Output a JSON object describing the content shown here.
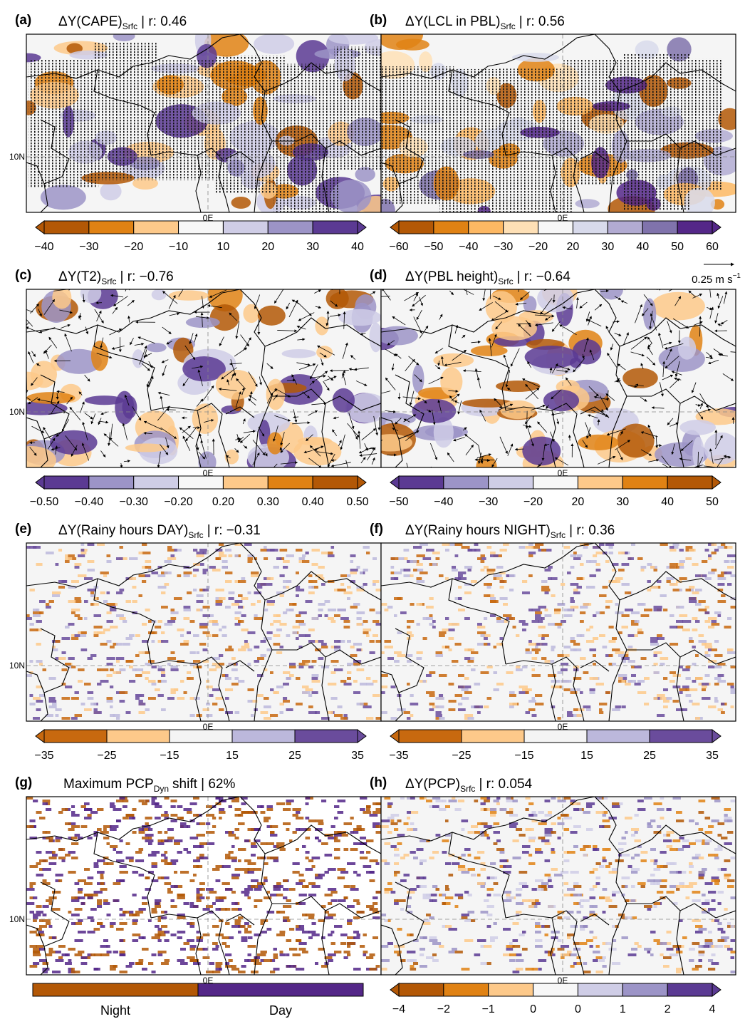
{
  "panels": [
    {
      "letter": "(a)",
      "title": "ΔY(CAPE)",
      "sub": "Srfc",
      "suffix": "| r: 0.46",
      "lat_label": "10N",
      "lon_label": "0E",
      "hatched": true,
      "style": "blobs",
      "colorbar": {
        "colors": [
          "#b35806",
          "#e08214",
          "#fdc98a",
          "#f7f7f7",
          "#cfcde6",
          "#9c94c7",
          "#5b3a93"
        ],
        "ticks": [
          "−40",
          "−30",
          "−20",
          "−10",
          "10",
          "20",
          "30",
          "40"
        ]
      }
    },
    {
      "letter": "(b)",
      "title": "ΔY(LCL in PBL)",
      "sub": "Srfc",
      "suffix": "| r: 0.56",
      "lon_label": "0E",
      "hatched": true,
      "style": "blobs",
      "colorbar": {
        "colors": [
          "#b35806",
          "#e08214",
          "#fdb863",
          "#fee0b6",
          "#f7f7f7",
          "#d8daeb",
          "#b2abd2",
          "#8073ac",
          "#542788"
        ],
        "ticks": [
          "−60",
          "−50",
          "−40",
          "−30",
          "−20",
          "20",
          "30",
          "40",
          "50",
          "60"
        ]
      }
    },
    {
      "letter": "(c)",
      "title": "ΔY(T2)",
      "sub": "Srfc",
      "suffix": "| r: −0.76",
      "lat_label": "10N",
      "lon_label": "0E",
      "vectors": true,
      "style": "blobs",
      "colorbar": {
        "colors": [
          "#5b3a93",
          "#9c94c7",
          "#cfcde6",
          "#f7f7f7",
          "#fdc98a",
          "#e08214",
          "#b35806"
        ],
        "ticks": [
          "−0.50",
          "−0.40",
          "−0.30",
          "−0.20",
          "0.20",
          "0.30",
          "0.40",
          "0.50"
        ]
      }
    },
    {
      "letter": "(d)",
      "title": "ΔY(PBL height)",
      "sub": "Srfc",
      "suffix": "| r: −0.64",
      "lon_label": "0E",
      "vectors": true,
      "style": "blobs",
      "vector_key": {
        "text": "0.25 m s",
        "sup": "−1"
      },
      "colorbar": {
        "colors": [
          "#5b3a93",
          "#9c94c7",
          "#cfcde6",
          "#f7f7f7",
          "#fdc98a",
          "#e08214",
          "#b35806"
        ],
        "ticks": [
          "−50",
          "−40",
          "−30",
          "−20",
          "20",
          "30",
          "40",
          "50"
        ]
      }
    },
    {
      "letter": "(e)",
      "title": "ΔY(Rainy hours DAY)",
      "sub": "Srfc",
      "suffix": "| r: −0.31",
      "lat_label": "10N",
      "lon_label": "0E",
      "style": "speckle",
      "colorbar": {
        "colors": [
          "#c8690f",
          "#fdc98a",
          "#f4f4f4",
          "#bcb8dc",
          "#6a4c9c"
        ],
        "ticks": [
          "−35",
          "−25",
          "−15",
          "15",
          "25",
          "35"
        ]
      }
    },
    {
      "letter": "(f)",
      "title": "ΔY(Rainy hours NIGHT)",
      "sub": "Srfc",
      "suffix": "| r: 0.36",
      "lon_label": "0E",
      "style": "speckle",
      "colorbar": {
        "colors": [
          "#c8690f",
          "#fdc98a",
          "#f4f4f4",
          "#bcb8dc",
          "#6a4c9c"
        ],
        "ticks": [
          "−35",
          "−25",
          "−15",
          "15",
          "25",
          "35"
        ]
      }
    },
    {
      "letter": "(g)",
      "title": "Maximum PCP",
      "sub": "Dyn",
      "suffix": "shift | 62%",
      "lat_label": "10N",
      "lon_label": "0E",
      "style": "binary",
      "colorbar": {
        "colors": [
          "#b35806",
          "#542788"
        ],
        "legend_labels": [
          "Night",
          "Day"
        ]
      }
    },
    {
      "letter": "(h)",
      "title": "ΔY(PCP)",
      "sub": "Srfc",
      "suffix": "| r: 0.054",
      "lon_label": "0E",
      "style": "speckle",
      "colorbar": {
        "colors": [
          "#b35806",
          "#e08214",
          "#fdc98a",
          "#f7f7f7",
          "#cfcde6",
          "#9c94c7",
          "#5b3a93"
        ],
        "ticks": [
          "−4",
          "−2",
          "−1",
          "0",
          "0",
          "1",
          "2",
          "4"
        ]
      }
    }
  ]
}
